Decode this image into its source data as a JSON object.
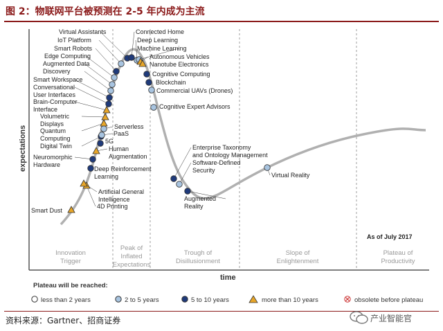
{
  "header": {
    "title": "图 2：物联网平台被预测在 2-5 年内成为主流"
  },
  "source": "资料来源：Gartner、招商证券",
  "watermark": "产业智能官",
  "chart_data": {
    "type": "hype-cycle",
    "ylabel": "expectations",
    "xlabel": "time",
    "date_note": "As of July 2017",
    "phases": [
      "Innovation Trigger",
      "Peak of Inflated Expectations",
      "Trough of Disillusionment",
      "Slope of Enlightenment",
      "Plateau of Productivity"
    ],
    "legend": {
      "title": "Plateau will be reached:",
      "items": [
        {
          "label": "less than 2 years",
          "marker": "circle-white",
          "color": "#ffffff"
        },
        {
          "label": "2 to 5 years",
          "marker": "circle-light",
          "color": "#a8c4e0"
        },
        {
          "label": "5 to 10 years",
          "marker": "circle-dark",
          "color": "#1f3a7a"
        },
        {
          "label": "more than 10 years",
          "marker": "triangle",
          "color": "#e8a628"
        },
        {
          "label": "obsolete before plateau",
          "marker": "x-circle",
          "color": "#cc3333"
        }
      ]
    },
    "colors": {
      "curve": "#aaaaaa",
      "light": "#a8c4e0",
      "dark": "#1f3a7a",
      "triangle": "#e8a628",
      "title": "#8b1a1a"
    },
    "technologies": [
      {
        "name": "Smart Dust",
        "plateau": "more than 10 years",
        "phase": "Innovation Trigger"
      },
      {
        "name": "4D Printing",
        "plateau": "more than 10 years",
        "phase": "Innovation Trigger"
      },
      {
        "name": "Artificial General Intelligence",
        "plateau": "more than 10 years",
        "phase": "Innovation Trigger"
      },
      {
        "name": "Deep Reinforcement Learning",
        "plateau": "5 to 10 years",
        "phase": "Innovation Trigger"
      },
      {
        "name": "Neuromorphic Hardware",
        "plateau": "5 to 10 years",
        "phase": "Innovation Trigger"
      },
      {
        "name": "Human Augmentation",
        "plateau": "more than 10 years",
        "phase": "Innovation Trigger"
      },
      {
        "name": "5G",
        "plateau": "5 to 10 years",
        "phase": "Innovation Trigger"
      },
      {
        "name": "Digital Twin",
        "plateau": "5 to 10 years",
        "phase": "Innovation Trigger"
      },
      {
        "name": "PaaS",
        "plateau": "2 to 5 years",
        "phase": "Innovation Trigger"
      },
      {
        "name": "Serverless",
        "plateau": "2 to 5 years",
        "phase": "Innovation Trigger"
      },
      {
        "name": "Quantum Computing",
        "plateau": "more than 10 years",
        "phase": "Innovation Trigger"
      },
      {
        "name": "Volumetric Displays",
        "plateau": "more than 10 years",
        "phase": "Innovation Trigger"
      },
      {
        "name": "Brain-Computer Interface",
        "plateau": "more than 10 years",
        "phase": "Innovation Trigger"
      },
      {
        "name": "Conversational User Interfaces",
        "plateau": "5 to 10 years",
        "phase": "Innovation Trigger"
      },
      {
        "name": "Smart Workspace",
        "plateau": "5 to 10 years",
        "phase": "Innovation Trigger"
      },
      {
        "name": "Discovery",
        "plateau": "2 to 5 years",
        "phase": "Innovation Trigger"
      },
      {
        "name": "Augmented Data",
        "plateau": "2 to 5 years",
        "phase": "Innovation Trigger"
      },
      {
        "name": "Edge Computing",
        "plateau": "2 to 5 years",
        "phase": "Innovation Trigger"
      },
      {
        "name": "Smart Robots",
        "plateau": "5 to 10 years",
        "phase": "Innovation Trigger"
      },
      {
        "name": "IoT Platform",
        "plateau": "2 to 5 years",
        "phase": "Peak of Inflated Expectations"
      },
      {
        "name": "Virtual Assistants",
        "plateau": "5 to 10 years",
        "phase": "Peak of Inflated Expectations"
      },
      {
        "name": "Connected Home",
        "plateau": "5 to 10 years",
        "phase": "Peak of Inflated Expectations"
      },
      {
        "name": "Deep Learning",
        "plateau": "2 to 5 years",
        "phase": "Peak of Inflated Expectations"
      },
      {
        "name": "Machine Learning",
        "plateau": "2 to 5 years",
        "phase": "Peak of Inflated Expectations"
      },
      {
        "name": "Autonomous Vehicles",
        "plateau": "more than 10 years",
        "phase": "Peak of Inflated Expectations"
      },
      {
        "name": "Nanotube Electronics",
        "plateau": "more than 10 years",
        "phase": "Peak of Inflated Expectations"
      },
      {
        "name": "Cognitive Computing",
        "plateau": "5 to 10 years",
        "phase": "Peak of Inflated Expectations"
      },
      {
        "name": "Blockchain",
        "plateau": "5 to 10 years",
        "phase": "Peak of Inflated Expectations"
      },
      {
        "name": "Commercial UAVs (Drones)",
        "plateau": "2 to 5 years",
        "phase": "Peak of Inflated Expectations"
      },
      {
        "name": "Cognitive Expert Advisors",
        "plateau": "2 to 5 years",
        "phase": "Peak of Inflated Expectations"
      },
      {
        "name": "Enterprise Taxonomy and Ontology Management",
        "plateau": "5 to 10 years",
        "phase": "Trough of Disillusionment"
      },
      {
        "name": "Software-Defined Security",
        "plateau": "2 to 5 years",
        "phase": "Trough of Disillusionment"
      },
      {
        "name": "Augmented Reality",
        "plateau": "5 to 10 years",
        "phase": "Trough of Disillusionment"
      },
      {
        "name": "Virtual Reality",
        "plateau": "2 to 5 years",
        "phase": "Slope of Enlightenment"
      }
    ]
  }
}
